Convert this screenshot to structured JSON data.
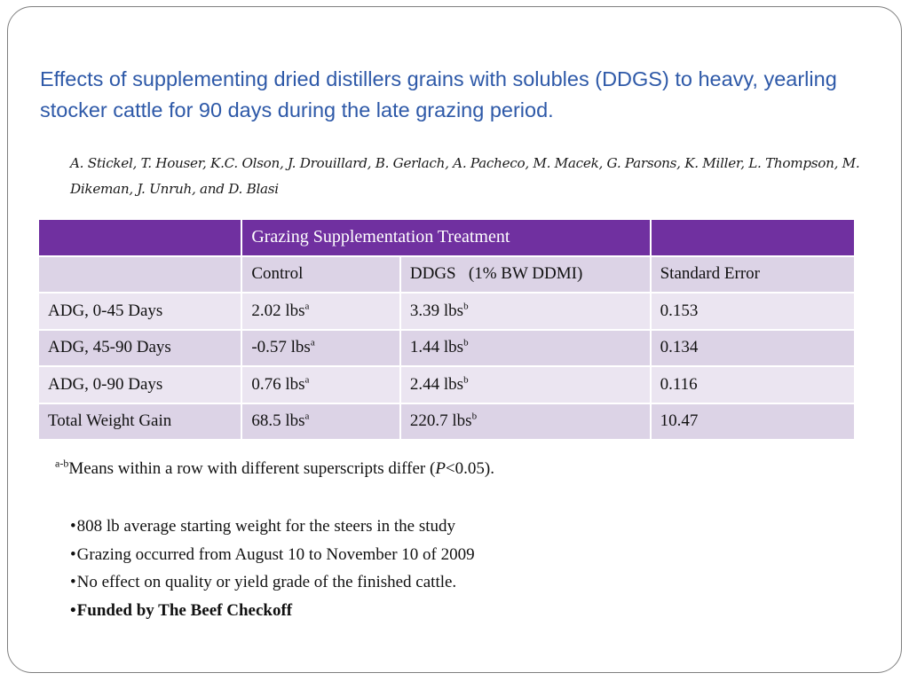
{
  "title": "Effects of supplementing dried distillers grains with solubles (DDGS) to heavy, yearling stocker cattle for 90 days during the late grazing period.",
  "authors": "A. Stickel, T. Houser, K.C. Olson, J. Drouillard, B. Gerlach, A. Pacheco, M. Macek, G. Parsons, K. Miller, L. Thompson, M. Dikeman, J. Unruh, and D. Blasi",
  "table": {
    "header": [
      "",
      "Grazing Supplementation Treatment",
      ""
    ],
    "subheader": [
      "",
      "Control",
      "DDGS   (1% BW DDMI)",
      "Standard Error"
    ],
    "rows": [
      {
        "label": "ADG, 0-45 Days",
        "control": "2.02 lbs",
        "control_sup": "a",
        "ddgs": "3.39 lbs",
        "ddgs_sup": "b",
        "se": "0.153"
      },
      {
        "label": "ADG, 45-90 Days",
        "control": "-0.57 lbs",
        "control_sup": "a",
        "ddgs": "1.44 lbs",
        "ddgs_sup": "b",
        "se": "0.134"
      },
      {
        "label": "ADG, 0-90 Days",
        "control": "0.76 lbs",
        "control_sup": "a",
        "ddgs": "2.44 lbs",
        "ddgs_sup": "b",
        "se": "0.116"
      },
      {
        "label": "Total Weight Gain",
        "control": "68.5 lbs",
        "control_sup": "a",
        "ddgs": "220.7 lbs",
        "ddgs_sup": "b",
        "se": "10.47"
      }
    ]
  },
  "footnote": {
    "sup": "a-b",
    "text_before": "Means within a row with different superscripts differ (",
    "p": "P",
    "text_after": "<0.05)."
  },
  "bullets": [
    {
      "text": "808 lb average starting weight for the steers in the study",
      "bold": false
    },
    {
      "text": "Grazing occurred from August 10 to November 10 of 2009",
      "bold": false
    },
    {
      "text": "No effect on quality or yield grade of the finished cattle.",
      "bold": false
    },
    {
      "text": "Funded by The Beef Checkoff",
      "bold": true
    }
  ],
  "bullet_char": "•",
  "colors": {
    "title": "#2e59a8",
    "header_bg": "#7030a0",
    "row_dark": "#dcd3e6",
    "row_light": "#ebe5f1"
  }
}
